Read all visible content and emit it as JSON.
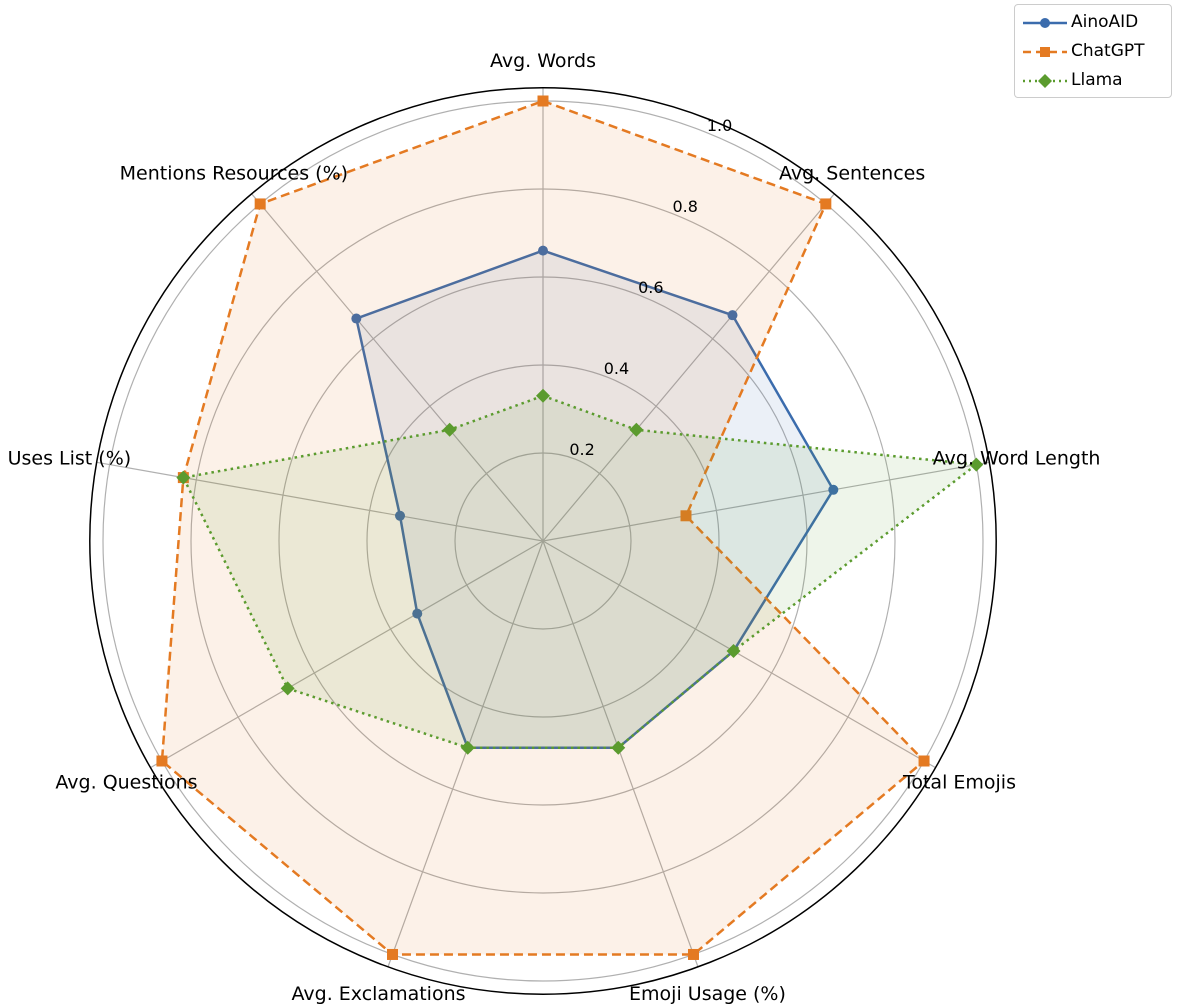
{
  "chart_data": {
    "type": "radar",
    "categories": [
      "Avg. Words",
      "Avg. Sentences",
      "Avg. Word Length",
      "Total Emojis",
      "Emoji Usage (%)",
      "Avg. Exclamations",
      "Avg. Questions",
      "Uses List (%)",
      "Mentions Resources (%)"
    ],
    "series": [
      {
        "name": "AinoAID",
        "values": [
          0.66,
          0.67,
          0.67,
          0.5,
          0.5,
          0.5,
          0.33,
          0.33,
          0.66
        ],
        "color": "#3b6cad",
        "linestyle": "solid",
        "marker": "circle"
      },
      {
        "name": "ChatGPT",
        "values": [
          1.0,
          1.0,
          0.33,
          1.0,
          1.0,
          1.0,
          1.0,
          0.83,
          1.0
        ],
        "color": "#e47a22",
        "linestyle": "dashed",
        "marker": "square"
      },
      {
        "name": "Llama",
        "values": [
          0.33,
          0.33,
          1.0,
          0.5,
          0.5,
          0.5,
          0.67,
          0.83,
          0.33
        ],
        "color": "#5b9b2e",
        "linestyle": "dotted",
        "marker": "diamond"
      }
    ],
    "rticks": [
      "0.2",
      "0.4",
      "0.6",
      "0.8",
      "1.0"
    ],
    "rlim": [
      0,
      1.03
    ],
    "grid": true,
    "legend": "top-right"
  }
}
